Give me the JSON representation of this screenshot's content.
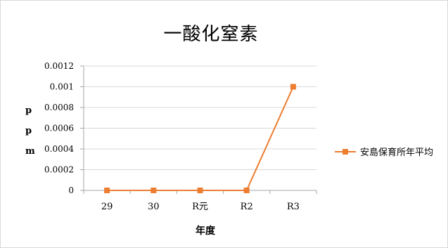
{
  "chart_data": {
    "type": "line",
    "title": "一酸化窒素",
    "xlabel": "年度",
    "ylabel_chars": [
      "p",
      "p",
      "m"
    ],
    "categories": [
      "29",
      "30",
      "R元",
      "R2",
      "R3"
    ],
    "series": [
      {
        "name": "安島保育所年平均",
        "values": [
          0,
          0,
          0,
          0,
          0.001
        ]
      }
    ],
    "ylim": [
      0,
      0.0012
    ],
    "yticks": [
      "0",
      "0.0002",
      "0.0004",
      "0.0006",
      "0.0008",
      "0.001",
      "0.0012"
    ],
    "ytick_values": [
      0,
      0.0002,
      0.0004,
      0.0006,
      0.0008,
      0.001,
      0.0012
    ],
    "grid": true,
    "legend_position": "right",
    "color": "#ed7d31"
  }
}
